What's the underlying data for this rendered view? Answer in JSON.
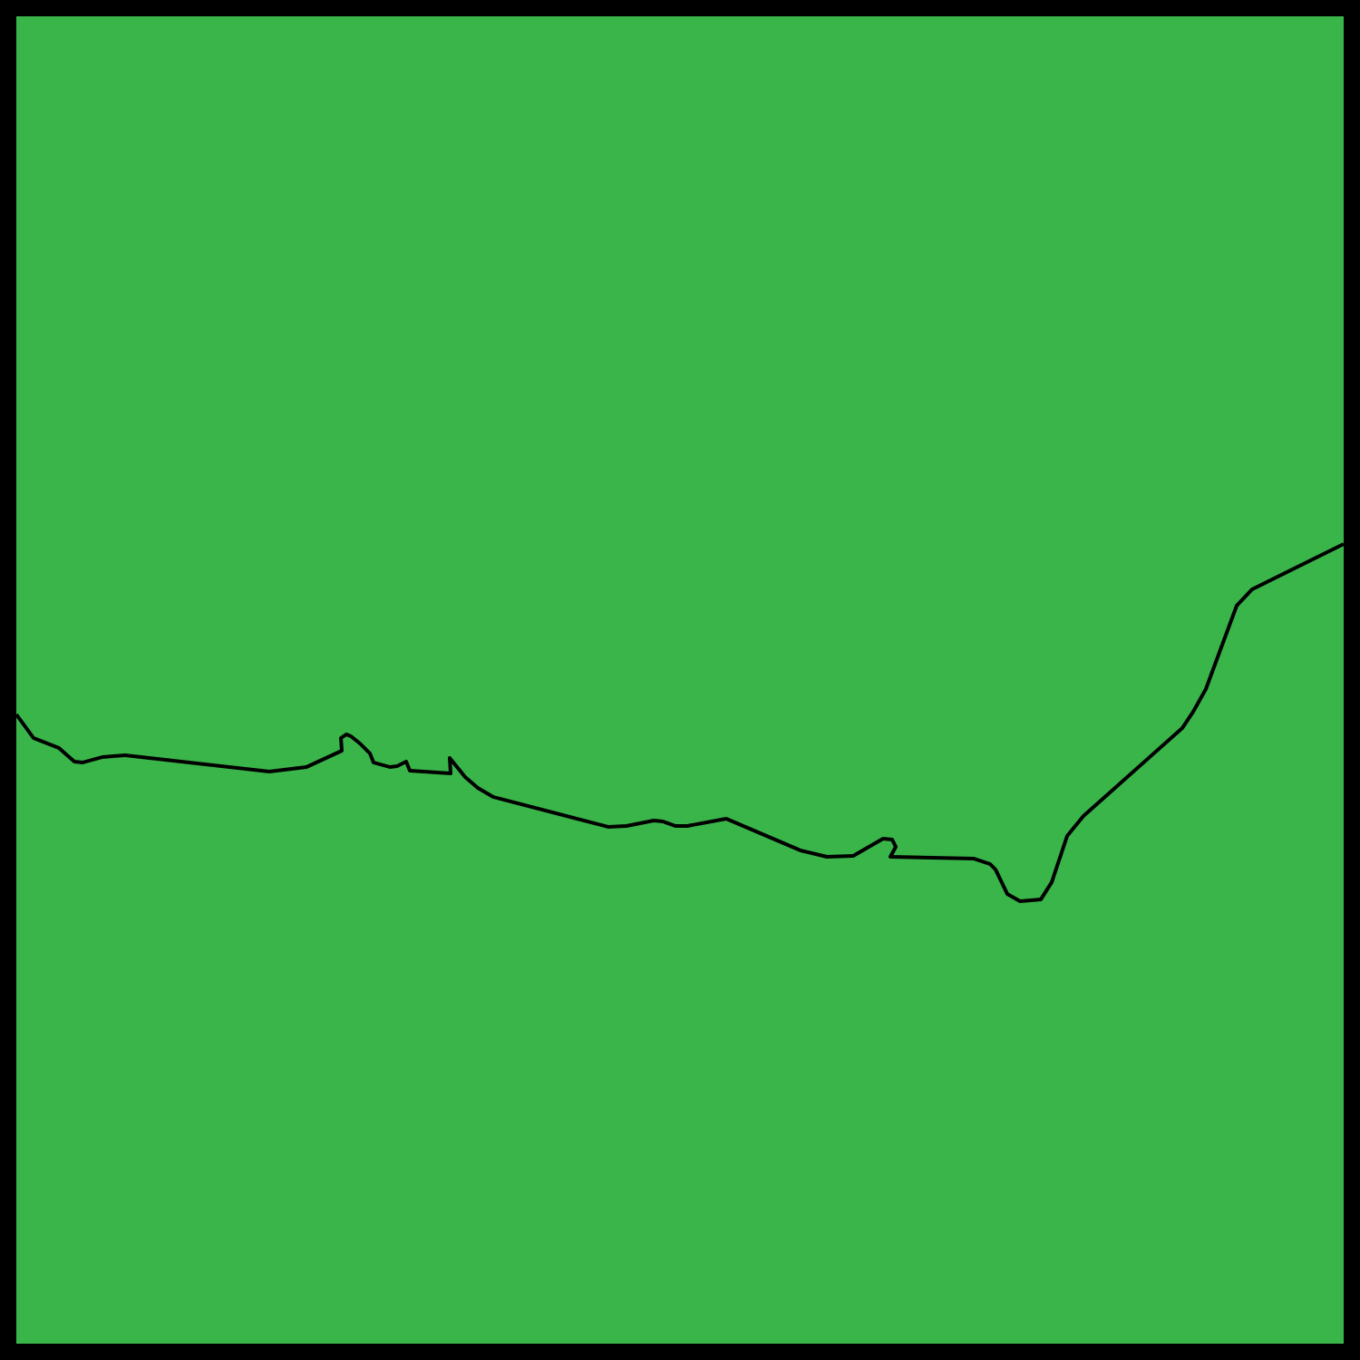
{
  "map": {
    "colors": {
      "land": "#3AB54A",
      "border": "#000000",
      "frame": "#000000"
    },
    "features": [
      {
        "kind": "region",
        "label": ""
      },
      {
        "kind": "region",
        "label": ""
      }
    ],
    "boundary": {
      "kind": "border-line",
      "label": ""
    }
  }
}
